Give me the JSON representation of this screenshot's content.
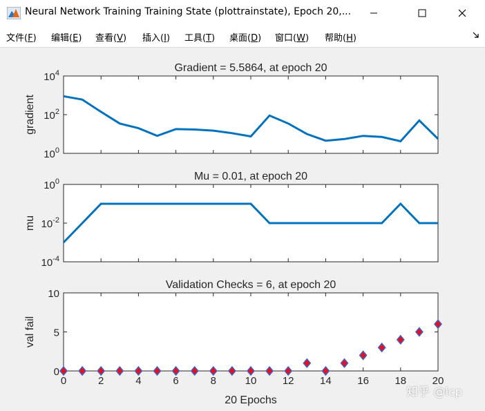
{
  "window": {
    "title": "Neural Network Training Training State (plottrainstate), Epoch 20,...",
    "icon": "matlab-icon",
    "buttons": [
      "minimize-icon",
      "maximize-icon",
      "close-icon"
    ]
  },
  "menu": {
    "items": [
      {
        "label": "文件",
        "key": "F"
      },
      {
        "label": "编辑",
        "key": "E"
      },
      {
        "label": "查看",
        "key": "V"
      },
      {
        "label": "插入",
        "key": "I"
      },
      {
        "label": "工具",
        "key": "T"
      },
      {
        "label": "桌面",
        "key": "D"
      },
      {
        "label": "窗口",
        "key": "W"
      },
      {
        "label": "帮助",
        "key": "H"
      }
    ],
    "dock_icon": "dock-arrow-icon"
  },
  "watermark": "知乎 @lcp",
  "colors": {
    "line": "#0072bd",
    "marker_fill": "#e8101e",
    "marker_edge": "#4060c0",
    "axes": "#262626"
  },
  "chart_data": [
    {
      "type": "line",
      "title": "Gradient = 5.5864, at epoch 20",
      "ylabel": "gradient",
      "yscale": "log",
      "ylim": [
        1,
        10000
      ],
      "yticks": [
        {
          "v": 1,
          "mant": "10",
          "exp": "0"
        },
        {
          "v": 100,
          "mant": "10",
          "exp": "2"
        },
        {
          "v": 10000,
          "mant": "10",
          "exp": "4"
        }
      ],
      "xlim": [
        0,
        20
      ],
      "show_xticklabels": false,
      "x": [
        0,
        1,
        2,
        3,
        4,
        5,
        6,
        7,
        8,
        9,
        10,
        11,
        12,
        13,
        14,
        15,
        16,
        17,
        18,
        19,
        20
      ],
      "values": [
        900,
        600,
        140,
        35,
        20,
        8,
        18,
        17,
        15,
        11,
        7.5,
        90,
        35,
        10,
        4.5,
        5.5,
        8,
        7,
        4.2,
        50,
        5.5864
      ]
    },
    {
      "type": "line",
      "title": "Mu = 0.01, at epoch 20",
      "ylabel": "mu",
      "yscale": "log",
      "ylim": [
        0.0001,
        1
      ],
      "yticks": [
        {
          "v": 0.0001,
          "mant": "10",
          "exp": "-4"
        },
        {
          "v": 0.01,
          "mant": "10",
          "exp": "-2"
        },
        {
          "v": 1,
          "mant": "10",
          "exp": "0"
        }
      ],
      "xlim": [
        0,
        20
      ],
      "show_xticklabels": false,
      "x": [
        0,
        1,
        2,
        3,
        4,
        5,
        6,
        7,
        8,
        9,
        10,
        11,
        12,
        13,
        14,
        15,
        16,
        17,
        18,
        19,
        20
      ],
      "values": [
        0.001,
        0.01,
        0.1,
        0.1,
        0.1,
        0.1,
        0.1,
        0.1,
        0.1,
        0.1,
        0.1,
        0.01,
        0.01,
        0.01,
        0.01,
        0.01,
        0.01,
        0.01,
        0.1,
        0.01,
        0.01
      ]
    },
    {
      "type": "scatter",
      "title": "Validation Checks = 6, at epoch 20",
      "ylabel": "val fail",
      "xlabel": "20 Epochs",
      "yscale": "linear",
      "ylim": [
        0,
        10
      ],
      "yticks": [
        {
          "v": 0,
          "label": "0"
        },
        {
          "v": 5,
          "label": "5"
        },
        {
          "v": 10,
          "label": "10"
        }
      ],
      "xlim": [
        0,
        20
      ],
      "xticks": [
        0,
        2,
        4,
        6,
        8,
        10,
        12,
        14,
        16,
        18,
        20
      ],
      "show_xticklabels": true,
      "x": [
        0,
        1,
        2,
        3,
        4,
        5,
        6,
        7,
        8,
        9,
        10,
        11,
        12,
        13,
        14,
        15,
        16,
        17,
        18,
        19,
        20
      ],
      "values": [
        0,
        0,
        0,
        0,
        0,
        0,
        0,
        0,
        0,
        0,
        0,
        0,
        0,
        1,
        0,
        1,
        2,
        3,
        4,
        5,
        6
      ]
    }
  ]
}
